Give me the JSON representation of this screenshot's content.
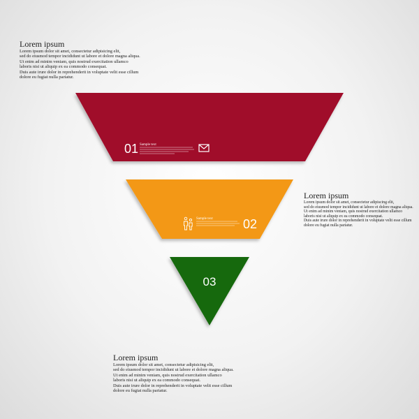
{
  "colors": {
    "level1": "#a0092b",
    "level2": "#f39813",
    "level3": "#17690f"
  },
  "levels": [
    {
      "number": "01",
      "sample_title": "Sample text",
      "icon": "envelope-icon"
    },
    {
      "number": "02",
      "sample_title": "Sample text",
      "icon": "people-icon"
    },
    {
      "number": "03"
    }
  ],
  "text_blocks": [
    {
      "title": "Lorem ipsum",
      "body": "Lorem ipsum dolor sit amet, consectetur adipisicing elit,\nsed do eiusmod tempor incididunt ut labore et dolore magna aliqua.\nUt enim ad minim veniam, quis nostrud exercitation ullamco\nlaboris nisi ut aliquip ex ea commodo consequat.\nDuis aute irure dolor in reprehenderit in voluptate velit esse cillum\ndolore eu fugiat nulla pariatur."
    },
    {
      "title": "Lorem ipsum",
      "body": "Lorem ipsum dolor sit amet, consectetur adipiscing elit,\nsed do eiusmod tempor incididunt ut labore et dolore magna aliqua.\nUt enim ad minim veniam, quis nostrud exercitation ullamco\nlaboris nisi ut aliquip ex ea commodo consequat.\nDuis aute irure dolor in reprehenderit in voluptate velit esse cillum\ndolore eu fugiat nulla pariatur."
    },
    {
      "title": "Lorem ipsum",
      "body": "Lorem ipsum dolor sit amet, consectetur adipisicing elit,\nsed do eiusmod tempor incididunt ut labore et dolore magna aliqua.\nUt enim ad minim veniam, quis nostrud exercitation ullamco\nlaboris nisi ut aliquip ex ea commodo consequat.\nDuis aute irure dolor in reprehenderit in voluptate velit esse cillum\ndolore eu fugiat nulla pariatur."
    }
  ]
}
